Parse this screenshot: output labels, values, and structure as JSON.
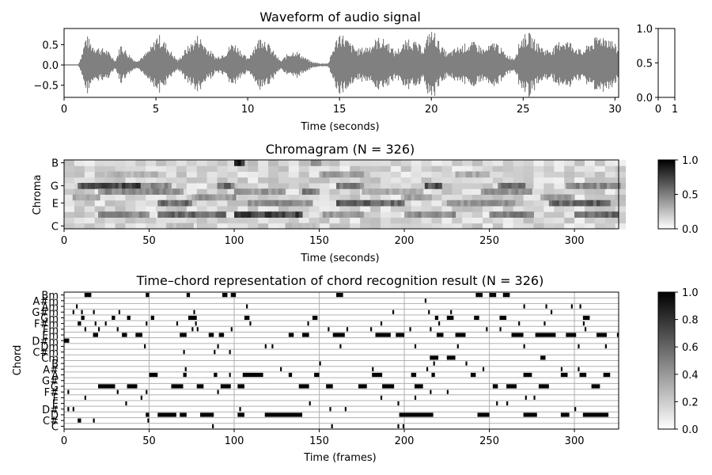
{
  "chart_data": [
    {
      "type": "line",
      "title": "Waveform of audio signal",
      "xlabel": "Time (seconds)",
      "ylabel": "",
      "xlim": [
        0,
        30.2
      ],
      "ylim": [
        -0.8,
        0.9
      ],
      "x_ticks": [
        0,
        5,
        10,
        15,
        20,
        25,
        30
      ],
      "y_ticks": [
        -0.5,
        0.0,
        0.5
      ],
      "y_tick_labels": [
        "−0.5",
        "0.0",
        "0.5"
      ],
      "color": "#808080",
      "envelope": {
        "t": [
          0.8,
          1.0,
          1.2,
          1.5,
          1.9,
          2.3,
          2.8,
          3.1,
          3.4,
          3.9,
          4.4,
          4.8,
          5.1,
          5.4,
          5.9,
          6.2,
          6.6,
          7.0,
          7.3,
          7.8,
          8.3,
          8.8,
          9.2,
          9.6,
          10.0,
          10.4,
          10.8,
          11.3,
          11.8,
          12.2,
          12.6,
          13.1,
          13.5,
          14.0,
          14.4,
          14.7,
          15.0,
          15.3,
          15.6,
          16.0,
          16.6,
          17.1,
          17.6,
          18.0,
          18.4,
          18.8,
          19.2,
          19.6,
          19.9,
          20.2,
          20.5,
          20.9,
          21.4,
          21.9,
          22.4,
          22.9,
          23.5,
          24.0,
          24.5,
          24.9,
          25.3,
          25.7,
          26.2,
          26.7,
          27.1,
          27.6,
          28.2,
          28.7,
          29.2,
          29.7,
          30.2
        ],
        "amp": [
          0.05,
          0.35,
          0.78,
          0.55,
          0.45,
          0.4,
          0.12,
          0.55,
          0.35,
          0.1,
          0.28,
          0.5,
          0.8,
          0.65,
          0.3,
          0.12,
          0.4,
          0.6,
          0.78,
          0.45,
          0.2,
          0.35,
          0.6,
          0.4,
          0.15,
          0.55,
          0.78,
          0.42,
          0.1,
          0.3,
          0.38,
          0.2,
          0.08,
          0.04,
          0.05,
          0.5,
          0.85,
          0.72,
          0.55,
          0.4,
          0.5,
          0.7,
          0.62,
          0.35,
          0.5,
          0.72,
          0.55,
          0.45,
          0.88,
          0.82,
          0.5,
          0.3,
          0.45,
          0.55,
          0.58,
          0.4,
          0.62,
          0.3,
          0.18,
          0.72,
          0.82,
          0.6,
          0.4,
          0.45,
          0.68,
          0.58,
          0.35,
          0.6,
          0.78,
          0.72,
          0.4
        ]
      }
    },
    {
      "type": "heatmap",
      "title": "",
      "xlabel": "",
      "ylabel": "",
      "xlim": [
        0,
        1
      ],
      "ylim": [
        0,
        1
      ],
      "x_ticks": [
        0,
        1
      ],
      "y_ticks": [
        0.0,
        0.5,
        1.0
      ],
      "y_tick_labels": [
        "0.0",
        "0.5",
        "1.0"
      ],
      "values": []
    },
    {
      "type": "heatmap",
      "title": "Chromagram (N = 326)",
      "xlabel": "Time (seconds)",
      "ylabel": "Chroma",
      "xlim": [
        0,
        326
      ],
      "x_ticks": [
        0,
        50,
        100,
        150,
        200,
        250,
        300
      ],
      "y_labels": [
        "C",
        "E",
        "G",
        "B"
      ],
      "y_label_rows": [
        0,
        4,
        7,
        11
      ],
      "n_rows": 12,
      "colormap": "gray_r",
      "bands": [
        {
          "row": 7,
          "segments": [
            [
              8,
              45,
              0.85
            ],
            [
              45,
              62,
              0.55
            ],
            [
              90,
              100,
              0.7
            ],
            [
              160,
              175,
              0.6
            ],
            [
              212,
              222,
              0.8
            ],
            [
              255,
              270,
              0.7
            ],
            [
              295,
              326,
              0.55
            ]
          ]
        },
        {
          "row": 6,
          "segments": [
            [
              20,
              70,
              0.55
            ],
            [
              100,
              130,
              0.5
            ],
            [
              140,
              150,
              0.6
            ],
            [
              175,
              210,
              0.4
            ],
            [
              245,
              275,
              0.5
            ]
          ]
        },
        {
          "row": 4,
          "segments": [
            [
              55,
              75,
              0.7
            ],
            [
              108,
              145,
              0.55
            ],
            [
              160,
              200,
              0.75
            ],
            [
              225,
              265,
              0.5
            ],
            [
              285,
              320,
              0.75
            ]
          ]
        },
        {
          "row": 5,
          "segments": [
            [
              5,
              20,
              0.4
            ],
            [
              75,
              100,
              0.5
            ],
            [
              200,
              215,
              0.45
            ],
            [
              280,
              300,
              0.45
            ]
          ]
        },
        {
          "row": 2,
          "segments": [
            [
              20,
              50,
              0.55
            ],
            [
              55,
              95,
              0.7
            ],
            [
              100,
              140,
              0.9
            ],
            [
              152,
              175,
              0.5
            ],
            [
              200,
              230,
              0.55
            ],
            [
              250,
              275,
              0.6
            ],
            [
              300,
              326,
              0.7
            ]
          ]
        },
        {
          "row": 9,
          "segments": [
            [
              25,
              55,
              0.35
            ],
            [
              150,
              175,
              0.45
            ],
            [
              230,
              250,
              0.4
            ]
          ]
        },
        {
          "row": 11,
          "segments": [
            [
              100,
              105,
              0.95
            ],
            [
              145,
              150,
              0.5
            ]
          ]
        },
        {
          "row": 0,
          "segments": [
            [
              60,
              75,
              0.3
            ],
            [
              130,
              150,
              0.3
            ]
          ]
        }
      ],
      "colorbar_ticks": [
        0.0,
        0.5,
        1.0
      ],
      "colorbar_tick_labels": [
        "0.0",
        "0.5",
        "1.0"
      ]
    },
    {
      "type": "heatmap",
      "title": "Time–chord representation of chord recognition result (N = 326)",
      "xlabel": "Time (frames)",
      "ylabel": "Chord",
      "xlim": [
        0,
        326
      ],
      "x_ticks": [
        0,
        50,
        100,
        150,
        200,
        250,
        300
      ],
      "y_labels": [
        "C",
        "C#",
        "D",
        "D#",
        "E",
        "F",
        "F#",
        "G",
        "G#",
        "A",
        "A#",
        "B",
        "Cm",
        "C#m",
        "Dm",
        "D#m",
        "Em",
        "Fm",
        "F#m",
        "Gm",
        "G#m",
        "Am",
        "A#m",
        "Bm"
      ],
      "colormap": "gray_r",
      "activations": [
        {
          "chord": "C",
          "frames": [
            87,
            157,
            196,
            199
          ]
        },
        {
          "chord": "C#",
          "frames": [
            8,
            9,
            17,
            49
          ]
        },
        {
          "chord": "D",
          "frames": [
            [
              48,
              50
            ],
            [
              55,
              66
            ],
            [
              68,
              72
            ],
            [
              80,
              88
            ],
            [
              102,
              106
            ],
            [
              118,
              140
            ],
            [
              197,
              217
            ],
            [
              243,
              250
            ],
            [
              270,
              278
            ],
            [
              292,
              297
            ],
            [
              305,
              320
            ]
          ]
        },
        {
          "chord": "D#",
          "frames": [
            2,
            5,
            103,
            156,
            165,
            300
          ]
        },
        {
          "chord": "E",
          "frames": [
            36,
            144,
            196,
            254,
            260
          ]
        },
        {
          "chord": "F",
          "frames": [
            12,
            45,
            186,
            206,
            271,
            276
          ]
        },
        {
          "chord": "F#",
          "frames": [
            2,
            31,
            48,
            90,
            215,
            225
          ]
        },
        {
          "chord": "G",
          "frames": [
            [
              20,
              30
            ],
            [
              37,
              43
            ],
            [
              63,
              70
            ],
            [
              78,
              82
            ],
            [
              92,
              98
            ],
            [
              102,
              106
            ],
            [
              138,
              144
            ],
            [
              154,
              158
            ],
            [
              173,
              178
            ],
            [
              187,
              194
            ],
            [
              206,
              211
            ],
            [
              252,
              255
            ],
            [
              260,
              266
            ],
            [
              279,
              285
            ],
            [
              310,
              315
            ]
          ]
        },
        {
          "chord": "A",
          "frames": [
            [
              50,
              55
            ],
            [
              70,
              72
            ],
            [
              88,
              90
            ],
            [
              97,
              98
            ],
            [
              105,
              117
            ],
            [
              132,
              134
            ],
            [
              147,
              150
            ],
            [
              181,
              187
            ],
            [
              204,
              207
            ],
            [
              216,
              218
            ],
            [
              239,
              242
            ],
            [
              270,
              275
            ],
            [
              292,
              296
            ],
            [
              303,
              307
            ],
            [
              317,
              321
            ]
          ]
        },
        {
          "chord": "A#",
          "frames": [
            71,
            127,
            181,
            213,
            246,
            292,
            302
          ]
        },
        {
          "chord": "B",
          "frames": [
            150,
            217,
            236
          ]
        },
        {
          "chord": "Cm",
          "frames": [
            [
              215,
              220
            ],
            [
              225,
              230
            ],
            [
              280,
              283
            ]
          ]
        },
        {
          "chord": "C#m",
          "frames": [
            70,
            88,
            97
          ]
        },
        {
          "chord": "Dm",
          "frames": [
            47,
            90,
            118,
            122,
            162,
            206,
            231,
            270,
            302,
            318
          ]
        },
        {
          "chord": "D#m",
          "frames": [
            [
              0,
              3
            ]
          ]
        },
        {
          "chord": "Em",
          "frames": [
            [
              17,
              20
            ],
            [
              34,
              37
            ],
            [
              42,
              46
            ],
            [
              68,
              72
            ],
            [
              85,
              88
            ],
            [
              91,
              94
            ],
            [
              132,
              135
            ],
            [
              140,
              144
            ],
            [
              158,
              165
            ],
            [
              183,
              192
            ],
            [
              195,
              200
            ],
            [
              219,
              223
            ],
            [
              230,
              236
            ],
            [
              263,
              270
            ],
            [
              277,
              289
            ],
            [
              295,
              301
            ],
            [
              313,
              319
            ],
            [
              325,
              326
            ]
          ]
        },
        {
          "chord": "Fm",
          "frames": [
            12,
            20,
            31,
            75,
            78,
            98,
            155,
            166,
            180,
            203,
            215,
            248,
            256,
            306
          ]
        },
        {
          "chord": "F#m",
          "frames": [
            8,
            9,
            18,
            24,
            48,
            66,
            77,
            109,
            143,
            186,
            220,
            267,
            282,
            305,
            331
          ]
        },
        {
          "chord": "Gm",
          "frames": [
            [
              10,
              12
            ],
            [
              28,
              30
            ],
            [
              37,
              39
            ],
            [
              51,
              53
            ],
            [
              73,
              78
            ],
            [
              106,
              109
            ],
            [
              146,
              149
            ],
            [
              218,
              220
            ],
            [
              225,
              229
            ],
            [
              241,
              244
            ],
            [
              256,
              260
            ],
            [
              305,
              309
            ]
          ]
        },
        {
          "chord": "G#m",
          "frames": [
            5,
            10,
            17,
            32,
            76,
            193,
            214,
            227,
            286
          ]
        },
        {
          "chord": "Am",
          "frames": [
            7,
            107,
            270,
            283,
            298,
            303
          ]
        },
        {
          "chord": "A#m",
          "frames": [
            212
          ]
        },
        {
          "chord": "Bm",
          "frames": [
            [
              12,
              16
            ],
            [
              48,
              50
            ],
            [
              72,
              74
            ],
            [
              93,
              96
            ],
            [
              98,
              101
            ],
            [
              160,
              164
            ],
            [
              242,
              246
            ],
            [
              250,
              254
            ],
            [
              258,
              262
            ]
          ]
        }
      ],
      "colorbar_ticks": [
        0.0,
        0.2,
        0.4,
        0.6,
        0.8,
        1.0
      ],
      "colorbar_tick_labels": [
        "0.0",
        "0.2",
        "0.4",
        "0.6",
        "0.8",
        "1.0"
      ]
    }
  ]
}
